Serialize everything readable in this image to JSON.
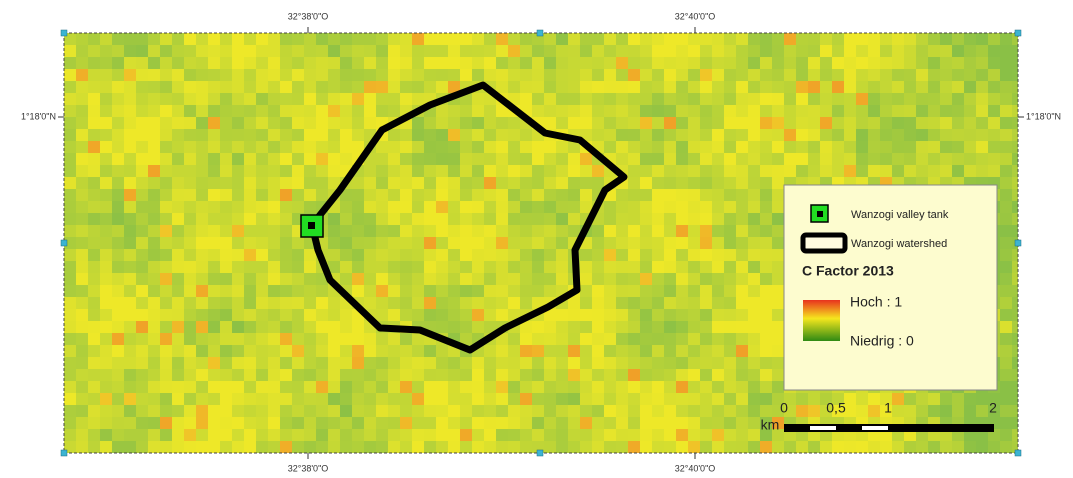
{
  "map": {
    "top_labels": [
      "32°38'0\"O",
      "32°40'0\"O"
    ],
    "bottom_labels": [
      "32°38'0\"O",
      "32°40'0\"O"
    ],
    "left_label": "1°18'0\"N",
    "right_label": "1°18'0\"N",
    "legend": {
      "items": [
        "Wanzogi valley tank",
        "Wanzogi watershed"
      ],
      "raster_title": "C Factor 2013",
      "high": "Hoch : 1",
      "low": "Niedrig : 0"
    },
    "scale_bar": {
      "unit": "km",
      "labels": [
        "0",
        "0,5",
        "1",
        "2"
      ]
    }
  }
}
